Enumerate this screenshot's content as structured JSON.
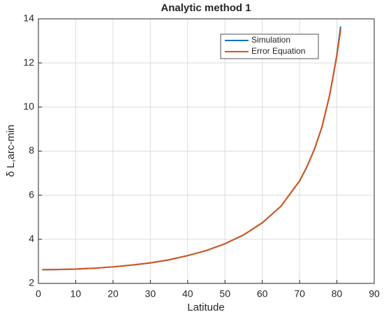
{
  "chart_data": {
    "type": "line",
    "title": "Analytic method 1",
    "xlabel": "Latitude",
    "ylabel": "δ L,arc-min",
    "x": [
      1,
      5,
      10,
      15,
      20,
      25,
      30,
      35,
      40,
      45,
      50,
      55,
      60,
      65,
      70,
      72,
      74,
      76,
      78,
      79,
      80,
      81
    ],
    "series": [
      {
        "name": "Simulation",
        "color": "#0072bd",
        "values": [
          2.62,
          2.63,
          2.65,
          2.69,
          2.75,
          2.83,
          2.93,
          3.07,
          3.26,
          3.49,
          3.8,
          4.2,
          4.75,
          5.5,
          6.65,
          7.3,
          8.1,
          9.1,
          10.5,
          11.4,
          12.4,
          13.65
        ]
      },
      {
        "name": "Error Equation",
        "color": "#d95319",
        "values": [
          2.62,
          2.63,
          2.65,
          2.69,
          2.75,
          2.83,
          2.93,
          3.07,
          3.26,
          3.49,
          3.8,
          4.2,
          4.75,
          5.5,
          6.65,
          7.3,
          8.1,
          9.1,
          10.5,
          11.4,
          12.35,
          13.5
        ]
      }
    ],
    "xlim": [
      0,
      90
    ],
    "xticks": [
      0,
      10,
      20,
      30,
      40,
      50,
      60,
      70,
      80,
      90
    ],
    "ylim": [
      2,
      14
    ],
    "yticks": [
      2,
      4,
      6,
      8,
      10,
      12,
      14
    ],
    "grid": true,
    "legend": "upper right"
  }
}
